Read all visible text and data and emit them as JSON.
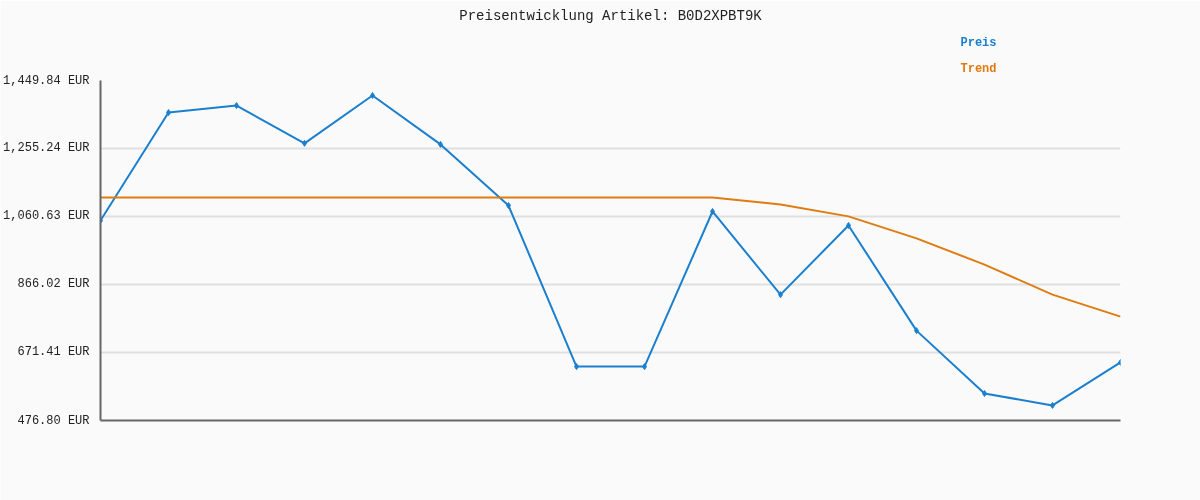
{
  "chart_data": {
    "type": "line",
    "title": "Preisentwicklung Artikel: B0D2XPBT9K",
    "categories": [
      null,
      null,
      null,
      null,
      null,
      null,
      null,
      null,
      null,
      null,
      null,
      null,
      null,
      null,
      null,
      null
    ],
    "series": [
      {
        "name": "Preis",
        "color": "#1a7fcf",
        "marker": "diamond",
        "values": [
          1049,
          1358,
          1378,
          1270,
          1407,
          1267,
          1092,
          631,
          631,
          1075,
          837,
          1035,
          734,
          554,
          520,
          643
        ]
      },
      {
        "name": "Trend",
        "color": "#e07b10",
        "values": [
          1115,
          1115,
          1115,
          1115,
          1115,
          1115,
          1115,
          1115,
          1115,
          1115,
          1095,
          1061,
          998,
          923,
          837,
          774
        ]
      }
    ],
    "ylim": [
      476.8,
      1449.84
    ],
    "yticks": [
      {
        "value": 476.8,
        "label": "476.80 EUR"
      },
      {
        "value": 671.41,
        "label": "671.41 EUR"
      },
      {
        "value": 866.02,
        "label": "866.02 EUR"
      },
      {
        "value": 1060.63,
        "label": "1,060.63 EUR"
      },
      {
        "value": 1255.24,
        "label": "1,255.24 EUR"
      },
      {
        "value": 1449.84,
        "label": "1,449.84 EUR"
      }
    ],
    "grid": "y",
    "tick_labels": "y",
    "line_style": "solid"
  }
}
